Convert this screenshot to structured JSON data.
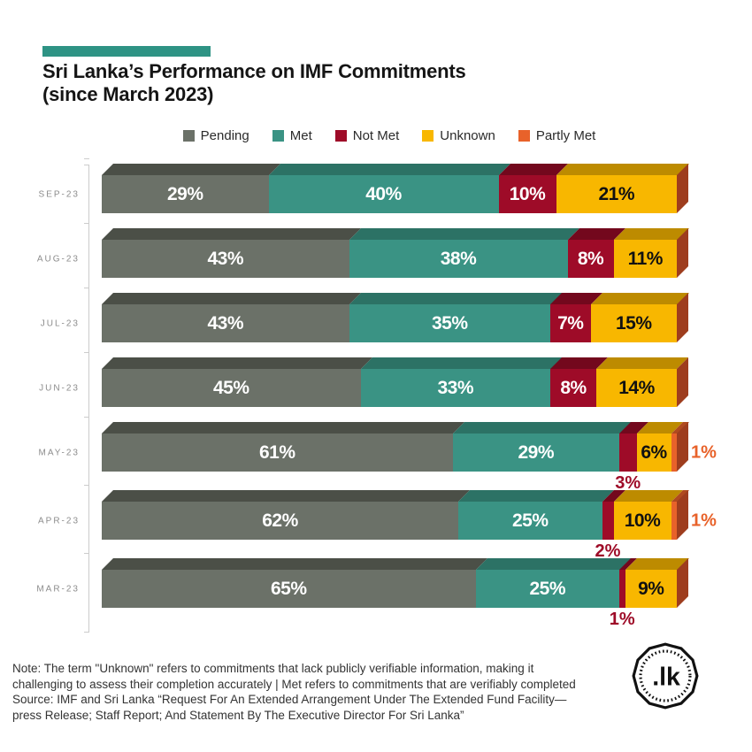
{
  "title": {
    "line1": "Sri Lanka’s Performance on IMF Commitments",
    "line2": "(since March 2023)"
  },
  "accent_color": "#2E9384",
  "chart_data": {
    "type": "bar",
    "stacked": true,
    "orientation": "horizontal",
    "unit": "%",
    "grid": false,
    "legend_position": "top",
    "xlim": [
      0,
      100
    ],
    "categories": [
      "SEP-23",
      "AUG-23",
      "JUL-23",
      "JUN-23",
      "MAY-23",
      "APR-23",
      "MAR-23"
    ],
    "series": [
      {
        "name": "Pending",
        "color": "#6B7168",
        "top_color": "#4B4F47",
        "label_color": "#FFFFFF",
        "values": [
          29,
          43,
          43,
          45,
          61,
          62,
          65
        ]
      },
      {
        "name": "Met",
        "color": "#3A9384",
        "top_color": "#2C7265",
        "label_color": "#FFFFFF",
        "values": [
          40,
          38,
          35,
          33,
          29,
          25,
          25
        ]
      },
      {
        "name": "Not Met",
        "color": "#9E0B28",
        "top_color": "#73081D",
        "label_color": "#FFFFFF",
        "values": [
          10,
          8,
          7,
          8,
          3,
          2,
          1
        ]
      },
      {
        "name": "Unknown",
        "color": "#F8B700",
        "top_color": "#BD8B00",
        "label_color": "#111111",
        "values": [
          21,
          11,
          15,
          14,
          6,
          10,
          9
        ]
      },
      {
        "name": "Partly Met",
        "color": "#E8622A",
        "top_color": "#B04A1F",
        "label_color": "#FFFFFF",
        "values": [
          0,
          0,
          0,
          0,
          1,
          1,
          0
        ]
      }
    ],
    "outside_labels": [
      {
        "category": "MAY-23",
        "series": "Not Met",
        "position": "below"
      },
      {
        "category": "APR-23",
        "series": "Not Met",
        "position": "below"
      },
      {
        "category": "MAR-23",
        "series": "Not Met",
        "position": "below"
      },
      {
        "category": "MAY-23",
        "series": "Partly Met",
        "position": "right"
      },
      {
        "category": "APR-23",
        "series": "Partly Met",
        "position": "right"
      }
    ],
    "side_face_color": "#9E3D1E",
    "axis_color": "#CCCCCC"
  },
  "footer": {
    "note": "Note: The term \"Unknown\" refers to commitments that lack publicly verifiable information, making it challenging to assess their completion accurately | Met refers to commitments that are verifiably completed",
    "source": "Source: IMF and Sri Lanka “Request For An Extended Arrangement Under The Extended Fund Facility—press Release; Staff Report; And Statement By The Executive Director For Sri Lanka”"
  },
  "logo": {
    "text": ".lk"
  }
}
